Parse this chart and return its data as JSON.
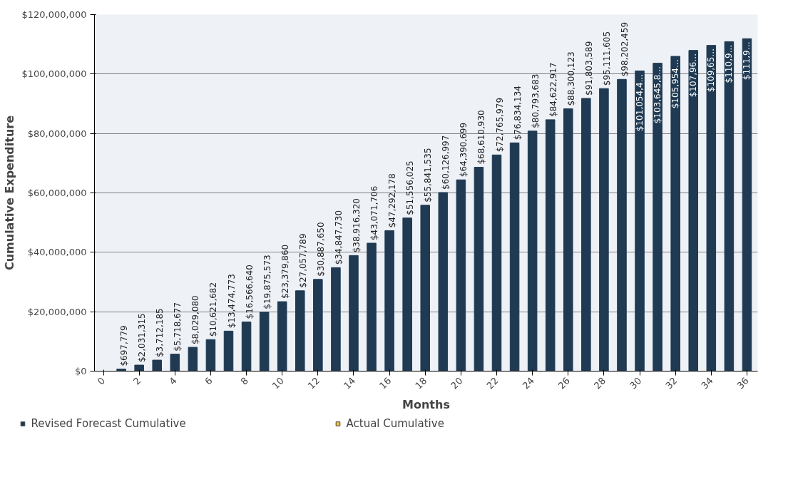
{
  "chart_data": {
    "type": "bar",
    "xlabel": "Months",
    "ylabel": "Cumulative Expenditure",
    "x": [
      1,
      2,
      3,
      4,
      5,
      6,
      7,
      8,
      9,
      10,
      11,
      12,
      13,
      14,
      15,
      16,
      17,
      18,
      19,
      20,
      21,
      22,
      23,
      24,
      25,
      26,
      27,
      28,
      29,
      30,
      31,
      32,
      33,
      34,
      35,
      36
    ],
    "series": [
      {
        "name": "Revised Forecast Cumulative",
        "color": "#1f3a52",
        "values": [
          697779,
          2031315,
          3712185,
          5718677,
          8029080,
          10621682,
          13474773,
          16566640,
          19875573,
          23379860,
          27057789,
          30887650,
          34847730,
          38916320,
          43071706,
          47292178,
          51556025,
          55841535,
          60126997,
          64390699,
          68610930,
          72765979,
          76834134,
          80793683,
          84622917,
          88300123,
          91803589,
          95111605,
          98202459,
          101054400,
          103645800,
          105954000,
          107960000,
          109650000,
          110900000,
          111900000
        ],
        "value_labels": [
          "$697,779",
          "$2,031,315",
          "$3,712,185",
          "$5,718,677",
          "$8,029,080",
          "$10,621,682",
          "$13,474,773",
          "$16,566,640",
          "$19,875,573",
          "$23,379,860",
          "$27,057,789",
          "$30,887,650",
          "$34,847,730",
          "$38,916,320",
          "$43,071,706",
          "$47,292,178",
          "$51,556,025",
          "$55,841,535",
          "$60,126,997",
          "$64,390,699",
          "$68,610,930",
          "$72,765,979",
          "$76,834,134",
          "$80,793,683",
          "$84,622,917",
          "$88,300,123",
          "$91,803,589",
          "$95,111,605",
          "$98,202,459",
          "$101,054,4…",
          "$103,645,8…",
          "$105,954…",
          "$107,96…",
          "$109,65…",
          "$110,9…",
          "$111,9…"
        ]
      },
      {
        "name": "Actual Cumulative",
        "color": "#f0c040",
        "values": [
          null,
          null,
          null,
          null,
          null,
          null,
          null,
          null,
          null,
          null,
          null,
          null,
          null,
          null,
          null,
          null,
          null,
          null,
          null,
          null,
          null,
          null,
          null,
          null,
          null,
          null,
          null,
          null,
          null,
          null,
          null,
          null,
          null,
          null,
          null,
          null
        ]
      }
    ],
    "xlim": [
      -0.5,
      36.6
    ],
    "xticks": [
      0,
      2,
      4,
      6,
      8,
      10,
      12,
      14,
      16,
      18,
      20,
      22,
      24,
      26,
      28,
      30,
      32,
      34,
      36
    ],
    "ylim": [
      0,
      120000000
    ],
    "yticks": [
      {
        "value": 0,
        "label": "$0"
      },
      {
        "value": 20000000,
        "label": "$20,000,000"
      },
      {
        "value": 40000000,
        "label": "$40,000,000"
      },
      {
        "value": 60000000,
        "label": "$60,000,000"
      },
      {
        "value": 80000000,
        "label": "$80,000,000"
      },
      {
        "value": 100000000,
        "label": "$100,000,000"
      },
      {
        "value": 120000000,
        "label": "$120,000,000"
      }
    ],
    "grid": "y",
    "legend": "bottom"
  }
}
